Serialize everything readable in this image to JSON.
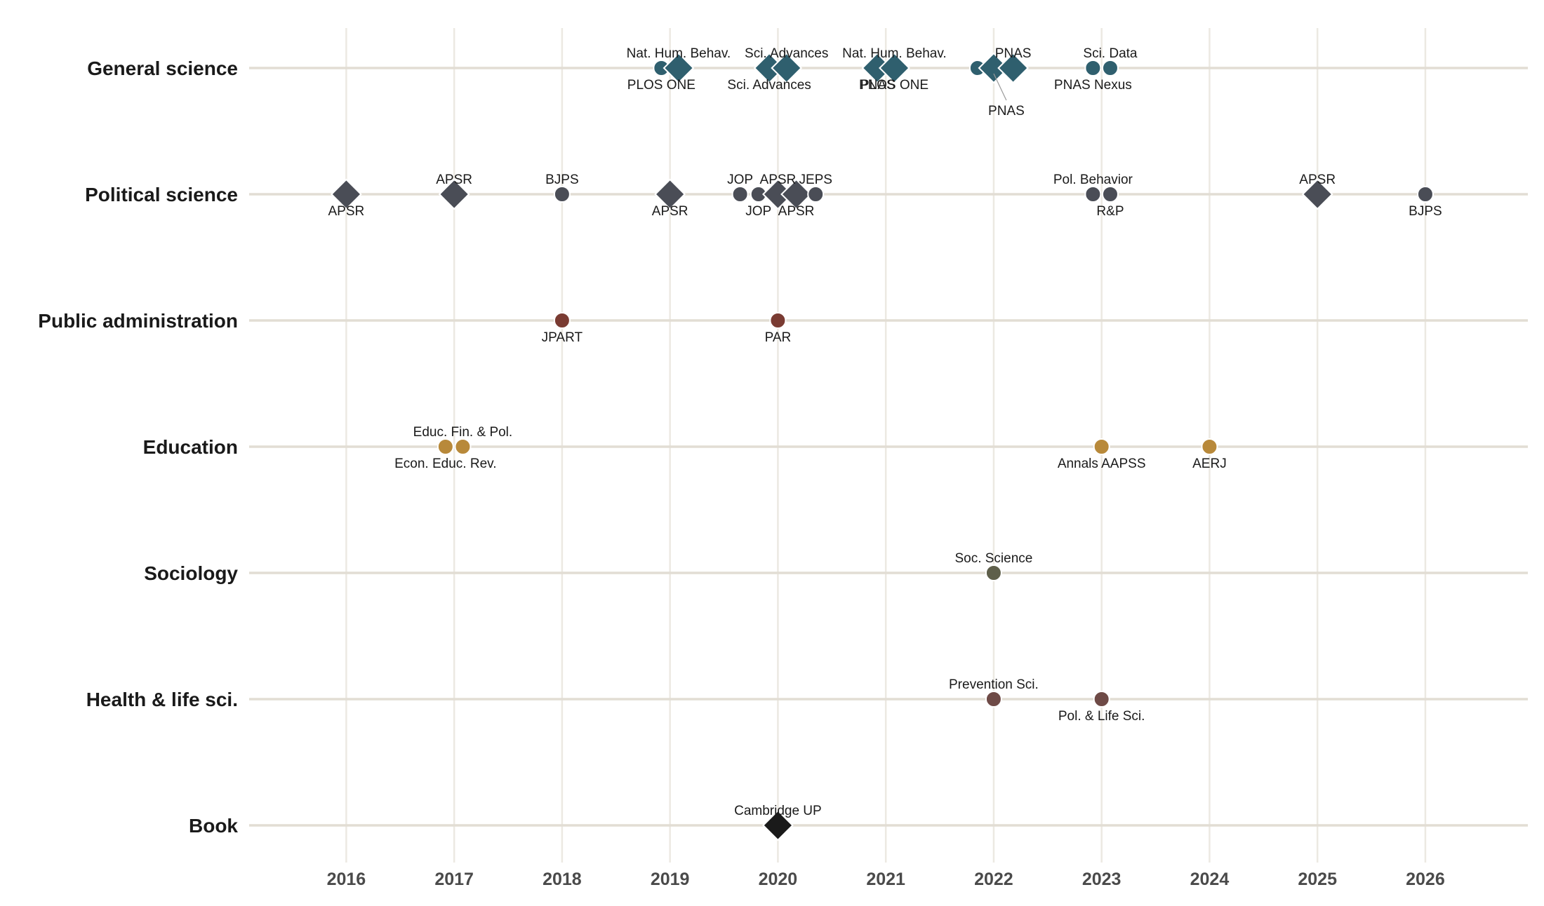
{
  "chart_data": {
    "type": "scatter",
    "title": "",
    "xlabel": "",
    "ylabel": "",
    "x_ticks": [
      "2016",
      "2017",
      "2018",
      "2019",
      "2020",
      "2021",
      "2022",
      "2023",
      "2024",
      "2025",
      "2026"
    ],
    "xlim": [
      2015.1,
      2026.95
    ],
    "grid": true,
    "legend": "none",
    "rows": [
      {
        "label": "General science",
        "color": "#2f5f6e"
      },
      {
        "label": "Political science",
        "color": "#4a4d56"
      },
      {
        "label": "Public administration",
        "color": "#7a3b32"
      },
      {
        "label": "Education",
        "color": "#b8893a"
      },
      {
        "label": "Sociology",
        "color": "#5e5f4a"
      },
      {
        "label": "Health & life sci.",
        "color": "#6e4a46"
      },
      {
        "label": "Book",
        "color": "#1a1a1a"
      }
    ],
    "points": [
      {
        "row": 0,
        "x": 2018.92,
        "shape": "circle",
        "label": "PLOS ONE",
        "pos": "below"
      },
      {
        "row": 0,
        "x": 2019.08,
        "shape": "diamond",
        "label": "Nat. Hum. Behav.",
        "pos": "above"
      },
      {
        "row": 0,
        "x": 2019.92,
        "shape": "diamond",
        "label": "Sci. Advances",
        "pos": "below"
      },
      {
        "row": 0,
        "x": 2020.08,
        "shape": "diamond",
        "label": "Sci. Advances",
        "pos": "above"
      },
      {
        "row": 0,
        "x": 2020.92,
        "shape": "diamond",
        "label": "PNAS",
        "pos": "below"
      },
      {
        "row": 0,
        "x": 2021.08,
        "shape": "diamond",
        "label": "Nat. Hum. Behav.",
        "pos": "above"
      },
      {
        "row": 0,
        "x": 2021.08,
        "shape": "none",
        "label": "PLOS ONE",
        "pos": "below"
      },
      {
        "row": 0,
        "x": 2021.85,
        "shape": "circle",
        "label": "",
        "pos": "none"
      },
      {
        "row": 0,
        "x": 2022.0,
        "shape": "diamond",
        "label": "PNAS",
        "pos": "far-below"
      },
      {
        "row": 0,
        "x": 2022.18,
        "shape": "diamond",
        "label": "PNAS",
        "pos": "above"
      },
      {
        "row": 0,
        "x": 2022.92,
        "shape": "circle",
        "label": "PNAS Nexus",
        "pos": "below"
      },
      {
        "row": 0,
        "x": 2023.08,
        "shape": "circle",
        "label": "Sci. Data",
        "pos": "above"
      },
      {
        "row": 1,
        "x": 2016.0,
        "shape": "diamond",
        "label": "APSR",
        "pos": "below"
      },
      {
        "row": 1,
        "x": 2017.0,
        "shape": "diamond",
        "label": "APSR",
        "pos": "above"
      },
      {
        "row": 1,
        "x": 2018.0,
        "shape": "circle",
        "label": "BJPS",
        "pos": "above"
      },
      {
        "row": 1,
        "x": 2019.0,
        "shape": "diamond",
        "label": "APSR",
        "pos": "below"
      },
      {
        "row": 1,
        "x": 2019.65,
        "shape": "circle",
        "label": "JOP",
        "pos": "above"
      },
      {
        "row": 1,
        "x": 2019.82,
        "shape": "circle",
        "label": "JOP",
        "pos": "below"
      },
      {
        "row": 1,
        "x": 2020.0,
        "shape": "diamond",
        "label": "APSR",
        "pos": "above"
      },
      {
        "row": 1,
        "x": 2020.17,
        "shape": "diamond",
        "label": "APSR",
        "pos": "below"
      },
      {
        "row": 1,
        "x": 2020.35,
        "shape": "circle",
        "label": "JEPS",
        "pos": "above"
      },
      {
        "row": 1,
        "x": 2022.92,
        "shape": "circle",
        "label": "Pol. Behavior",
        "pos": "above"
      },
      {
        "row": 1,
        "x": 2023.08,
        "shape": "circle",
        "label": "R&P",
        "pos": "below"
      },
      {
        "row": 1,
        "x": 2025.0,
        "shape": "diamond",
        "label": "APSR",
        "pos": "above"
      },
      {
        "row": 1,
        "x": 2026.0,
        "shape": "circle",
        "label": "BJPS",
        "pos": "below"
      },
      {
        "row": 2,
        "x": 2018.0,
        "shape": "circle",
        "label": "JPART",
        "pos": "below"
      },
      {
        "row": 2,
        "x": 2020.0,
        "shape": "circle",
        "label": "PAR",
        "pos": "below"
      },
      {
        "row": 3,
        "x": 2016.92,
        "shape": "circle",
        "label": "Econ. Educ. Rev.",
        "pos": "below"
      },
      {
        "row": 3,
        "x": 2017.08,
        "shape": "circle",
        "label": "Educ. Fin. & Pol.",
        "pos": "above"
      },
      {
        "row": 3,
        "x": 2023.0,
        "shape": "circle",
        "label": "Annals AAPSS",
        "pos": "below"
      },
      {
        "row": 3,
        "x": 2024.0,
        "shape": "circle",
        "label": "AERJ",
        "pos": "below"
      },
      {
        "row": 4,
        "x": 2022.0,
        "shape": "circle",
        "label": "Soc. Science",
        "pos": "above"
      },
      {
        "row": 5,
        "x": 2022.0,
        "shape": "circle",
        "label": "Prevention Sci.",
        "pos": "above"
      },
      {
        "row": 5,
        "x": 2023.0,
        "shape": "circle",
        "label": "Pol. & Life Sci.",
        "pos": "below"
      },
      {
        "row": 6,
        "x": 2020.0,
        "shape": "diamond",
        "label": "Cambridge UP",
        "pos": "above"
      }
    ]
  }
}
